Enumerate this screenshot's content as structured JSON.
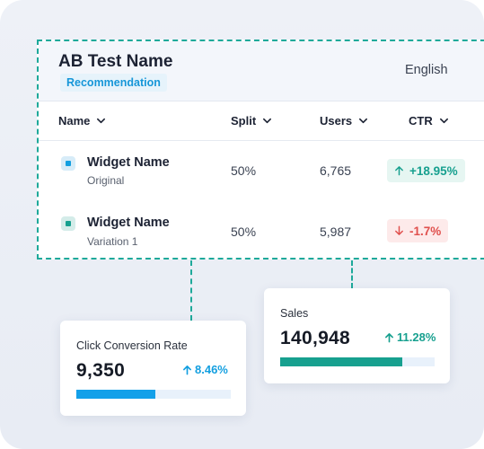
{
  "ab_test": {
    "title": "AB Test Name",
    "tag": "Recommendation",
    "language": "English",
    "columns": [
      "Name",
      "Split",
      "Users",
      "CTR"
    ],
    "rows": [
      {
        "name": "Widget Name",
        "sub": "Original",
        "split": "50%",
        "users": "6,765",
        "ctr": "+18.95%",
        "trend": "up"
      },
      {
        "name": "Widget Name",
        "sub": "Variation 1",
        "split": "50%",
        "users": "5,987",
        "ctr": "-1.7%",
        "trend": "down"
      }
    ]
  },
  "metrics": [
    {
      "label": "Click Conversion Rate",
      "value": "9,350",
      "change": "8.46%",
      "progress": 0.51,
      "color": "#13a0e9",
      "change_color": "#139fe0"
    },
    {
      "label": "Sales",
      "value": "140,948",
      "change": "11.28%",
      "progress": 0.79,
      "color": "#17a08f",
      "change_color": "#17a08f"
    }
  ]
}
